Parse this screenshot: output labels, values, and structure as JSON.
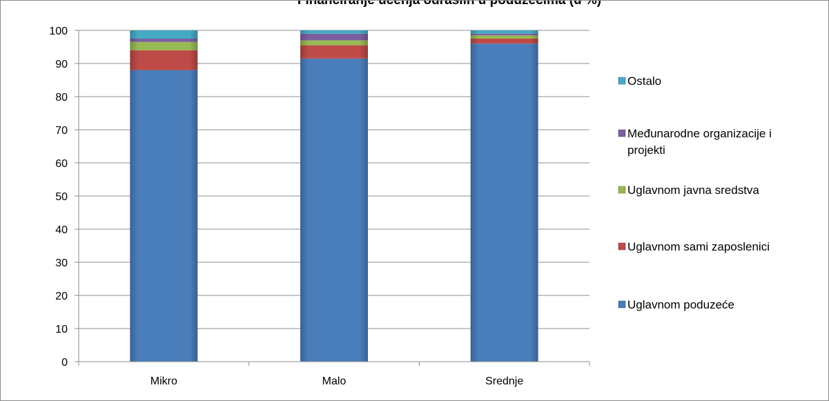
{
  "chart_data": {
    "type": "bar",
    "stacked": true,
    "title": "Financiranje učenja odraslih u poduzećima (u %)",
    "categories": [
      "Mikro",
      "Malo",
      "Srednje"
    ],
    "ylim": [
      0,
      100
    ],
    "yticks": [
      "0",
      "10",
      "20",
      "30",
      "40",
      "50",
      "60",
      "70",
      "80",
      "90",
      "100"
    ],
    "grid": true,
    "legend_position": "right",
    "series": [
      {
        "name": "Uglavnom poduzeće",
        "color": "#4a7ebb",
        "values": [
          88,
          91.5,
          96
        ]
      },
      {
        "name": "Uglavnom sami zaposlenici",
        "color": "#be4b48",
        "values": [
          6,
          4,
          1.5
        ]
      },
      {
        "name": "Uglavnom javna sredstva",
        "color": "#98b954",
        "values": [
          2.5,
          1.5,
          1
        ]
      },
      {
        "name": "Međunarodne organizacije i projekti",
        "color": "#7d5fa0",
        "values": [
          1,
          2,
          0.5
        ]
      },
      {
        "name": "Ostalo",
        "color": "#46aac5",
        "values": [
          2.5,
          1,
          1
        ]
      }
    ],
    "legend_lines": [
      [
        "Ostalo"
      ],
      [
        "Međunarodne organizacije i",
        "projekti"
      ],
      [
        "Uglavnom javna sredstva"
      ],
      [
        "Uglavnom sami zaposlenici"
      ],
      [
        "Uglavnom poduzeće"
      ]
    ]
  }
}
